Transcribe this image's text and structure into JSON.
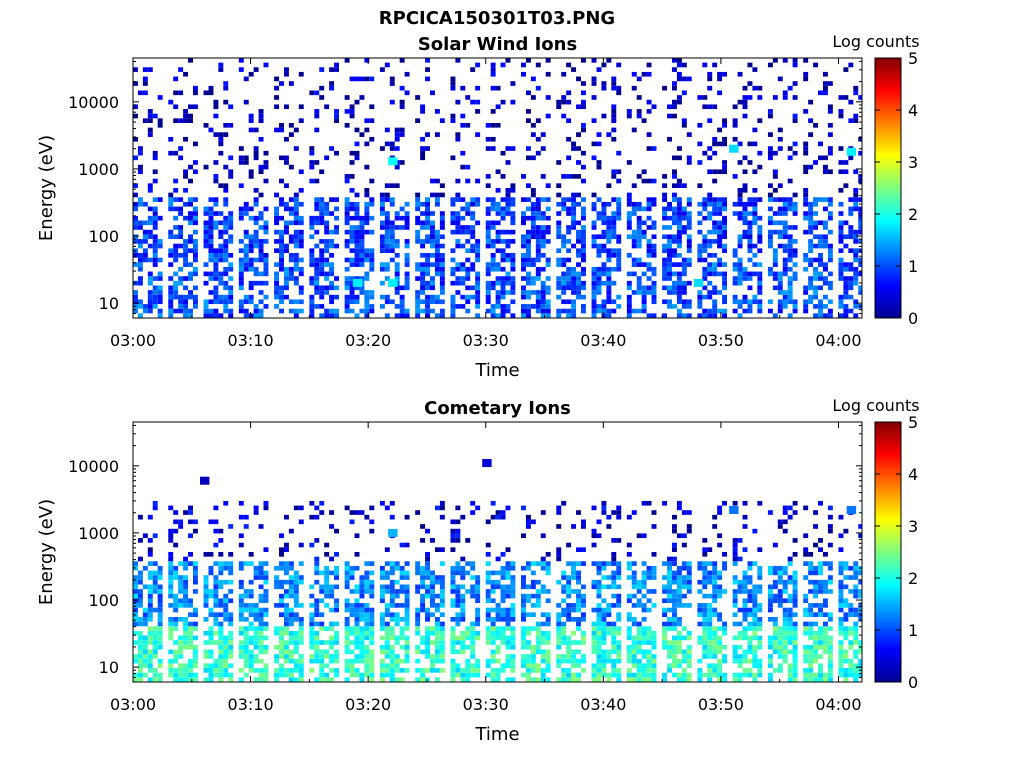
{
  "figure": {
    "title": "RPCICA150301T03.PNG"
  },
  "chart_data": [
    {
      "type": "heatmap",
      "title": "Solar Wind Ions",
      "xlabel": "Time",
      "ylabel": "Energy (eV)",
      "x_ticks": [
        "03:00",
        "03:10",
        "03:20",
        "03:30",
        "03:40",
        "03:50",
        "04:00"
      ],
      "y_ticks": [
        "10",
        "100",
        "1000",
        "10000"
      ],
      "y_scale": "log",
      "xlim": [
        "03:00",
        "04:02"
      ],
      "ylim": [
        6,
        45000
      ],
      "colorbar": {
        "label": "Log counts",
        "ticks": [
          "0",
          "1",
          "2",
          "3",
          "4",
          "5"
        ],
        "range": [
          0,
          5
        ],
        "colormap": "jet"
      },
      "sweep_starts_min": [
        0,
        3,
        6,
        9,
        12,
        15,
        18,
        21,
        24,
        27,
        30,
        33,
        36,
        39,
        42,
        45,
        48,
        51,
        54,
        57,
        60
      ],
      "bands": [
        {
          "e_low": 6,
          "e_high": 40,
          "level": 1.0
        },
        {
          "e_low": 40,
          "e_high": 350,
          "level": 0.9
        },
        {
          "e_low": 350,
          "e_high": 45000,
          "level": 0.3
        }
      ],
      "hotspots": [
        {
          "time_min": 22,
          "energy": 1300,
          "level": 1.9
        },
        {
          "time_min": 51,
          "energy": 2000,
          "level": 1.7
        },
        {
          "time_min": 61,
          "energy": 1800,
          "level": 1.8
        },
        {
          "time_min": 19,
          "energy": 20,
          "level": 1.8
        },
        {
          "time_min": 22,
          "energy": 20,
          "level": 1.8
        },
        {
          "time_min": 48,
          "energy": 20,
          "level": 1.7
        }
      ]
    },
    {
      "type": "heatmap",
      "title": "Cometary Ions",
      "xlabel": "Time",
      "ylabel": "Energy (eV)",
      "x_ticks": [
        "03:00",
        "03:10",
        "03:20",
        "03:30",
        "03:40",
        "03:50",
        "04:00"
      ],
      "y_ticks": [
        "10",
        "100",
        "1000",
        "10000"
      ],
      "y_scale": "log",
      "xlim": [
        "03:00",
        "04:02"
      ],
      "ylim": [
        6,
        45000
      ],
      "colorbar": {
        "label": "Log counts",
        "ticks": [
          "0",
          "1",
          "2",
          "3",
          "4",
          "5"
        ],
        "range": [
          0,
          5
        ],
        "colormap": "jet"
      },
      "sweep_starts_min": [
        0,
        3,
        6,
        9,
        12,
        15,
        18,
        21,
        24,
        27,
        30,
        33,
        36,
        39,
        42,
        45,
        48,
        51,
        54,
        57,
        60
      ],
      "bands": [
        {
          "e_low": 6,
          "e_high": 40,
          "level": 2.1
        },
        {
          "e_low": 40,
          "e_high": 350,
          "level": 1.3
        },
        {
          "e_low": 350,
          "e_high": 3000,
          "level": 0.4
        }
      ],
      "hotspots": [
        {
          "time_min": 30,
          "energy": 11000,
          "level": 0.4
        },
        {
          "time_min": 6,
          "energy": 6000,
          "level": 0.3
        },
        {
          "time_min": 61,
          "energy": 2200,
          "level": 1.2
        },
        {
          "time_min": 51,
          "energy": 2200,
          "level": 1.2
        },
        {
          "time_min": 22,
          "energy": 1000,
          "level": 1.5
        }
      ]
    }
  ]
}
